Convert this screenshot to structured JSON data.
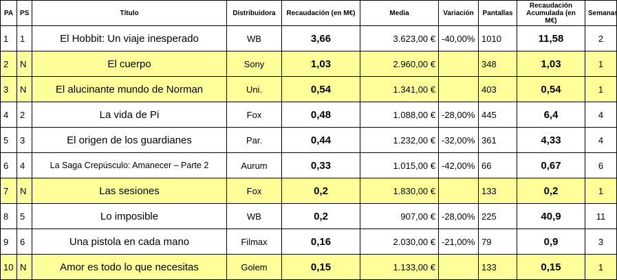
{
  "headers": {
    "pa": "PA",
    "ps": "PS",
    "titulo": "Título",
    "distribuidora": "Distribuidora",
    "recaudacion": "Recaudación (en M€)",
    "media": "Media",
    "variacion": "Variación",
    "pantallas": "Pantallas",
    "acumulada": "Recaudación Acumulada (en M€)",
    "semanas": "Semanas"
  },
  "rows": [
    {
      "pa": "1",
      "ps": "1",
      "titulo": "El Hobbit: Un viaje inesperado",
      "distribuidora": "WB",
      "recaudacion": "3,66",
      "media": "3.623,00 €",
      "variacion": "-40,00%",
      "pantallas": "1010",
      "acumulada": "11,58",
      "semanas": "2",
      "highlight": false
    },
    {
      "pa": "2",
      "ps": "N",
      "titulo": "El cuerpo",
      "distribuidora": "Sony",
      "recaudacion": "1,03",
      "media": "2.960,00 €",
      "variacion": "",
      "pantallas": "348",
      "acumulada": "1,03",
      "semanas": "1",
      "highlight": true
    },
    {
      "pa": "3",
      "ps": "N",
      "titulo": "El alucinante mundo de Norman",
      "distribuidora": "Uni.",
      "recaudacion": "0,54",
      "media": "1.341,00 €",
      "variacion": "",
      "pantallas": "403",
      "acumulada": "0,54",
      "semanas": "1",
      "highlight": true
    },
    {
      "pa": "4",
      "ps": "2",
      "titulo": "La vida de Pi",
      "distribuidora": "Fox",
      "recaudacion": "0,48",
      "media": "1.088,00 €",
      "variacion": "-28,00%",
      "pantallas": "445",
      "acumulada": "6,4",
      "semanas": "4",
      "highlight": false
    },
    {
      "pa": "5",
      "ps": "3",
      "titulo": "El origen de los guardianes",
      "distribuidora": "Par.",
      "recaudacion": "0,44",
      "media": "1.232,00 €",
      "variacion": "-32,00%",
      "pantallas": "361",
      "acumulada": "4,33",
      "semanas": "4",
      "highlight": false
    },
    {
      "pa": "6",
      "ps": "4",
      "titulo": "La Saga Crepúsculo: Amanecer – Parte 2",
      "distribuidora": "Aurum",
      "recaudacion": "0,33",
      "media": "1.015,00 €",
      "variacion": "-42,00%",
      "pantallas": "66",
      "acumulada": "0,67",
      "semanas": "6",
      "highlight": false,
      "small": true
    },
    {
      "pa": "7",
      "ps": "N",
      "titulo": "Las sesiones",
      "distribuidora": "Fox",
      "recaudacion": "0,2",
      "media": "1.830,00 €",
      "variacion": "",
      "pantallas": "133",
      "acumulada": "0,2",
      "semanas": "1",
      "highlight": true
    },
    {
      "pa": "8",
      "ps": "5",
      "titulo": "Lo imposible",
      "distribuidora": "WB",
      "recaudacion": "0,2",
      "media": "907,00 €",
      "variacion": "-28,00%",
      "pantallas": "225",
      "acumulada": "40,9",
      "semanas": "11",
      "highlight": false
    },
    {
      "pa": "9",
      "ps": "6",
      "titulo": "Una pistola en cada mano",
      "distribuidora": "Filmax",
      "recaudacion": "0,16",
      "media": "2.030,00 €",
      "variacion": "-21,00%",
      "pantallas": "79",
      "acumulada": "0,9",
      "semanas": "3",
      "highlight": false
    },
    {
      "pa": "10",
      "ps": "N",
      "titulo": "Amor es todo lo que necesitas",
      "distribuidora": "Golem",
      "recaudacion": "0,15",
      "media": "1.133,00 €",
      "variacion": "",
      "pantallas": "133",
      "acumulada": "0,15",
      "semanas": "1",
      "highlight": true
    }
  ],
  "colors": {
    "highlight": "#ffff99",
    "border": "#000000"
  }
}
